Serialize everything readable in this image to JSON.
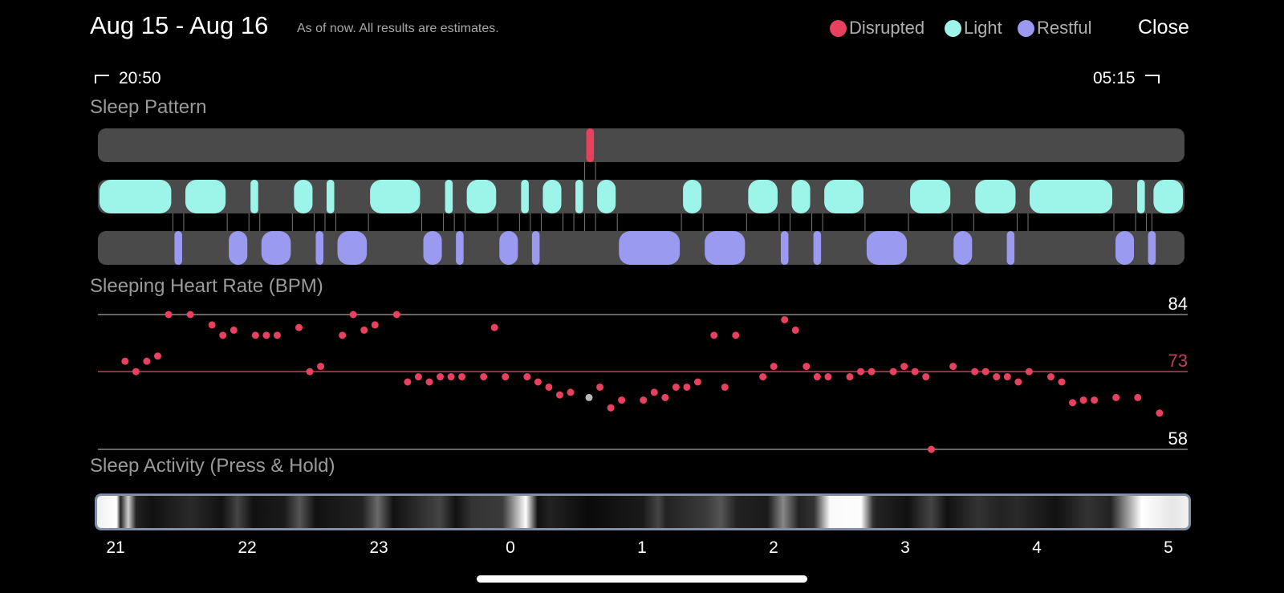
{
  "header": {
    "date_range": "Aug 15 - Aug 16",
    "disclaimer": "As of now. All results are estimates.",
    "close_label": "Close"
  },
  "legend": [
    {
      "label": "Disrupted",
      "color": "#e8405f"
    },
    {
      "label": "Light",
      "color": "#9cf5e8"
    },
    {
      "label": "Restful",
      "color": "#9a9af0"
    }
  ],
  "time_range": {
    "start": "20:50",
    "end": "05:15"
  },
  "sleep_pattern": {
    "title": "Sleep Pattern",
    "track_color": "#4a4a4a",
    "disrupted_color": "#e8405f",
    "light_color": "#9cf5e8",
    "restful_color": "#9a9af0",
    "disrupted": [
      [
        0.448,
        0.458
      ]
    ],
    "light": [
      [
        0.0,
        0.069
      ],
      [
        0.079,
        0.119
      ],
      [
        0.139,
        0.149
      ],
      [
        0.179,
        0.199
      ],
      [
        0.209,
        0.219
      ],
      [
        0.249,
        0.298
      ],
      [
        0.318,
        0.328
      ],
      [
        0.338,
        0.368
      ],
      [
        0.388,
        0.398
      ],
      [
        0.408,
        0.428
      ],
      [
        0.438,
        0.448
      ],
      [
        0.458,
        0.478
      ],
      [
        0.537,
        0.557
      ],
      [
        0.597,
        0.627
      ],
      [
        0.637,
        0.657
      ],
      [
        0.667,
        0.706
      ],
      [
        0.746,
        0.786
      ],
      [
        0.806,
        0.846
      ],
      [
        0.856,
        0.935
      ],
      [
        0.955,
        0.965
      ],
      [
        0.97,
        1.0
      ]
    ],
    "restful": [
      [
        0.069,
        0.079
      ],
      [
        0.119,
        0.139
      ],
      [
        0.149,
        0.179
      ],
      [
        0.199,
        0.209
      ],
      [
        0.219,
        0.249
      ],
      [
        0.298,
        0.318
      ],
      [
        0.328,
        0.338
      ],
      [
        0.368,
        0.388
      ],
      [
        0.398,
        0.408
      ],
      [
        0.478,
        0.537
      ],
      [
        0.557,
        0.597
      ],
      [
        0.627,
        0.637
      ],
      [
        0.657,
        0.667
      ],
      [
        0.706,
        0.746
      ],
      [
        0.786,
        0.806
      ],
      [
        0.835,
        0.845
      ],
      [
        0.935,
        0.955
      ],
      [
        0.965,
        0.975
      ]
    ]
  },
  "heart_rate": {
    "title": "Sleeping Heart Rate (BPM)",
    "max_label": "84",
    "avg_label": "73",
    "min_label": "58",
    "max": 84,
    "avg": 73,
    "min": 58,
    "dot_color": "#e8405f",
    "highlight_color": "#b8b8b8",
    "avg_line_color": "#c0405a",
    "grid_color": "#888888",
    "points": [
      [
        0.025,
        75
      ],
      [
        0.035,
        73
      ],
      [
        0.045,
        75
      ],
      [
        0.055,
        76
      ],
      [
        0.065,
        84
      ],
      [
        0.085,
        84
      ],
      [
        0.105,
        82
      ],
      [
        0.115,
        80
      ],
      [
        0.125,
        81
      ],
      [
        0.145,
        80
      ],
      [
        0.155,
        80
      ],
      [
        0.165,
        80
      ],
      [
        0.185,
        81.5
      ],
      [
        0.195,
        73
      ],
      [
        0.205,
        74
      ],
      [
        0.225,
        80
      ],
      [
        0.235,
        84
      ],
      [
        0.245,
        81
      ],
      [
        0.255,
        82
      ],
      [
        0.275,
        84
      ],
      [
        0.285,
        71
      ],
      [
        0.295,
        72
      ],
      [
        0.305,
        71
      ],
      [
        0.315,
        72
      ],
      [
        0.325,
        72
      ],
      [
        0.335,
        72
      ],
      [
        0.355,
        72
      ],
      [
        0.365,
        81.5
      ],
      [
        0.375,
        72
      ],
      [
        0.395,
        72
      ],
      [
        0.405,
        71
      ],
      [
        0.415,
        70
      ],
      [
        0.425,
        68.5
      ],
      [
        0.435,
        69
      ],
      [
        0.452,
        68,
        "gray"
      ],
      [
        0.462,
        70
      ],
      [
        0.472,
        66
      ],
      [
        0.482,
        67.5
      ],
      [
        0.502,
        67.5
      ],
      [
        0.512,
        69
      ],
      [
        0.522,
        68
      ],
      [
        0.532,
        70
      ],
      [
        0.542,
        70
      ],
      [
        0.552,
        71
      ],
      [
        0.567,
        80
      ],
      [
        0.577,
        70
      ],
      [
        0.587,
        80
      ],
      [
        0.612,
        72
      ],
      [
        0.622,
        74
      ],
      [
        0.632,
        83
      ],
      [
        0.642,
        81
      ],
      [
        0.652,
        74
      ],
      [
        0.662,
        72
      ],
      [
        0.672,
        72
      ],
      [
        0.692,
        72
      ],
      [
        0.702,
        73
      ],
      [
        0.712,
        73
      ],
      [
        0.732,
        73
      ],
      [
        0.742,
        74
      ],
      [
        0.752,
        73
      ],
      [
        0.762,
        72
      ],
      [
        0.787,
        74
      ],
      [
        0.807,
        73
      ],
      [
        0.817,
        73
      ],
      [
        0.827,
        72
      ],
      [
        0.837,
        72
      ],
      [
        0.847,
        71
      ],
      [
        0.857,
        73
      ],
      [
        0.877,
        72
      ],
      [
        0.887,
        71
      ],
      [
        0.897,
        67
      ],
      [
        0.907,
        67.5
      ],
      [
        0.917,
        67.5
      ],
      [
        0.937,
        68
      ],
      [
        0.957,
        68
      ],
      [
        0.977,
        65
      ],
      [
        0.767,
        58
      ]
    ]
  },
  "activity": {
    "title": "Sleep Activity (Press & Hold)"
  },
  "hour_ticks": [
    "21",
    "22",
    "23",
    "0",
    "1",
    "2",
    "3",
    "4",
    "5"
  ]
}
